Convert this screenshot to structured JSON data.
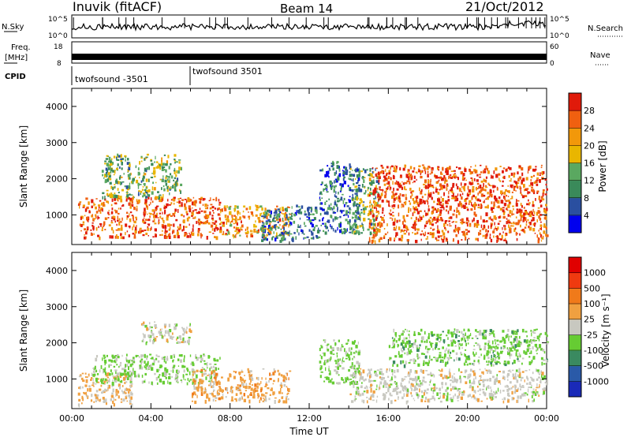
{
  "header": {
    "station": "Inuvik (fitACF)",
    "beam": "Beam 14",
    "date": "21/Oct/2012"
  },
  "top_panels": {
    "nsky": {
      "label": "N.Sky",
      "tick_top": "10^5",
      "tick_bottom": "10^0",
      "right_label": "N.Search",
      "right_tick_top": "10^5",
      "right_tick_bottom": "10^0"
    },
    "freq": {
      "label_line1": "Freq.",
      "label_line2": "[MHz]",
      "tick_top": "18",
      "tick_bottom": "8",
      "right_label": "Nave",
      "right_tick_top": "60",
      "right_tick_bottom": "0"
    },
    "cpid": {
      "label": "CPID",
      "segments": [
        "twofsound -3501",
        "twofsound 3501"
      ]
    }
  },
  "colors": {
    "power": [
      "#0000ee",
      "#2a4fa0",
      "#3a8a5a",
      "#5aa860",
      "#e9b600",
      "#f2980a",
      "#f06010",
      "#e01a0a"
    ],
    "velocity": [
      "#e00000",
      "#ef3a10",
      "#f07a1a",
      "#f0a040",
      "#c8c8c0",
      "#66cc33",
      "#3a8a60",
      "#2a5aa8",
      "#1a2ab8"
    ]
  },
  "chart_data": [
    {
      "type": "heatmap",
      "name": "power-panel",
      "xlabel": "",
      "ylabel": "Slant Range [km]",
      "xlim": [
        0,
        24
      ],
      "ylim": [
        180,
        4500
      ],
      "yticks": [
        "1000",
        "2000",
        "3000",
        "4000"
      ],
      "colorbar": {
        "label": "Power [dB]",
        "ticks": [
          "4",
          "8",
          "12",
          "16",
          "20",
          "24",
          "28"
        ],
        "range": [
          0,
          32
        ]
      },
      "regions": [
        {
          "t": [
            0.3,
            7.5
          ],
          "r": [
            400,
            1500
          ],
          "value": 27
        },
        {
          "t": [
            1.5,
            5.5
          ],
          "r": [
            1500,
            2700
          ],
          "value": 14
        },
        {
          "t": [
            7.5,
            11.0
          ],
          "r": [
            400,
            1300
          ],
          "value": 22
        },
        {
          "t": [
            9.5,
            12.5
          ],
          "r": [
            300,
            1300
          ],
          "value": 9
        },
        {
          "t": [
            12.5,
            14.5
          ],
          "r": [
            500,
            2500
          ],
          "value": 8
        },
        {
          "t": [
            14.0,
            15.5
          ],
          "r": [
            500,
            2300
          ],
          "value": 13
        },
        {
          "t": [
            15.0,
            24.0
          ],
          "r": [
            300,
            2400
          ],
          "value": 27
        }
      ]
    },
    {
      "type": "heatmap",
      "name": "velocity-panel",
      "xlabel": "Time UT",
      "ylabel": "Slant Range [km]",
      "xlim": [
        0,
        24
      ],
      "ylim": [
        180,
        4500
      ],
      "xticks": [
        "00:00",
        "04:00",
        "08:00",
        "12:00",
        "16:00",
        "20:00",
        "00:00"
      ],
      "yticks": [
        "1000",
        "2000",
        "3000",
        "4000"
      ],
      "colorbar": {
        "label": "Velocity [m s⁻¹]",
        "ticks": [
          "1000",
          "500",
          "100",
          "25",
          "-25",
          "-100",
          "-500",
          "-1000"
        ],
        "range": [
          -1200,
          1200
        ]
      },
      "regions": [
        {
          "t": [
            0.3,
            3.0
          ],
          "r": [
            300,
            1200
          ],
          "value": 150
        },
        {
          "t": [
            1.0,
            7.5
          ],
          "r": [
            900,
            1700
          ],
          "value": -200
        },
        {
          "t": [
            3.5,
            6.0
          ],
          "r": [
            2000,
            2600
          ],
          "value": 0
        },
        {
          "t": [
            6.0,
            11.0
          ],
          "r": [
            400,
            1300
          ],
          "value": 250
        },
        {
          "t": [
            12.5,
            14.5
          ],
          "r": [
            900,
            2100
          ],
          "value": -200
        },
        {
          "t": [
            14.0,
            24.0
          ],
          "r": [
            400,
            1300
          ],
          "value": 0
        },
        {
          "t": [
            16.0,
            24.0
          ],
          "r": [
            1400,
            2400
          ],
          "value": -250
        }
      ]
    }
  ]
}
